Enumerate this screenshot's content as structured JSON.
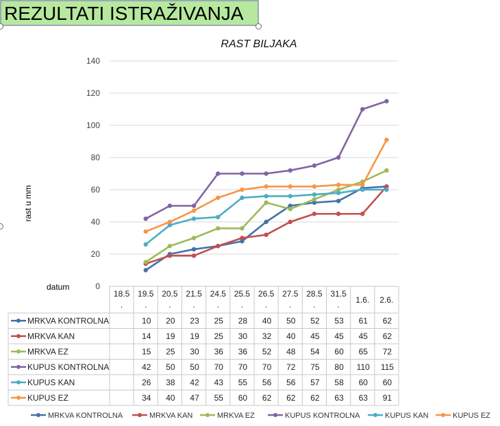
{
  "banner": {
    "title": "REZULTATI ISTRAŽIVANJA"
  },
  "chart_data": {
    "type": "line",
    "title": "RAST BILJAKA",
    "xlabel": "datum",
    "ylabel": "rast u mm",
    "ylim": [
      0,
      140
    ],
    "yticks": [
      0,
      20,
      40,
      60,
      80,
      100,
      120,
      140
    ],
    "grid": true,
    "legend_position": "bottom",
    "categories": [
      [
        "18.5",
        "."
      ],
      [
        "19.5",
        "."
      ],
      [
        "20.5",
        "."
      ],
      [
        "21.5",
        "."
      ],
      [
        "24.5",
        "."
      ],
      [
        "25.5",
        "."
      ],
      [
        "26.5",
        "."
      ],
      [
        "27.5",
        "."
      ],
      [
        "28.5",
        "."
      ],
      [
        "31.5",
        "."
      ],
      [
        "1.6.",
        ""
      ],
      [
        "2.6.",
        ""
      ]
    ],
    "series": [
      {
        "name": "MRKVA KONTROLNA",
        "color": "#4472a8",
        "values": [
          null,
          10,
          20,
          23,
          25,
          28,
          40,
          50,
          52,
          53,
          61,
          62
        ]
      },
      {
        "name": "MRKVA KAN",
        "color": "#c0504d",
        "values": [
          null,
          14,
          19,
          19,
          25,
          30,
          32,
          40,
          45,
          45,
          45,
          62
        ]
      },
      {
        "name": "MRKVA EZ",
        "color": "#9bbb59",
        "values": [
          null,
          15,
          25,
          30,
          36,
          36,
          52,
          48,
          54,
          60,
          65,
          72
        ]
      },
      {
        "name": "KUPUS KONTROLNA",
        "color": "#8064a2",
        "values": [
          null,
          42,
          50,
          50,
          70,
          70,
          70,
          72,
          75,
          80,
          110,
          115
        ]
      },
      {
        "name": "KUPUS KAN",
        "color": "#4bacc6",
        "values": [
          null,
          26,
          38,
          42,
          43,
          55,
          56,
          56,
          57,
          58,
          60,
          60
        ]
      },
      {
        "name": "KUPUS EZ",
        "color": "#f79646",
        "values": [
          null,
          34,
          40,
          47,
          55,
          60,
          62,
          62,
          62,
          63,
          63,
          91
        ]
      }
    ]
  }
}
